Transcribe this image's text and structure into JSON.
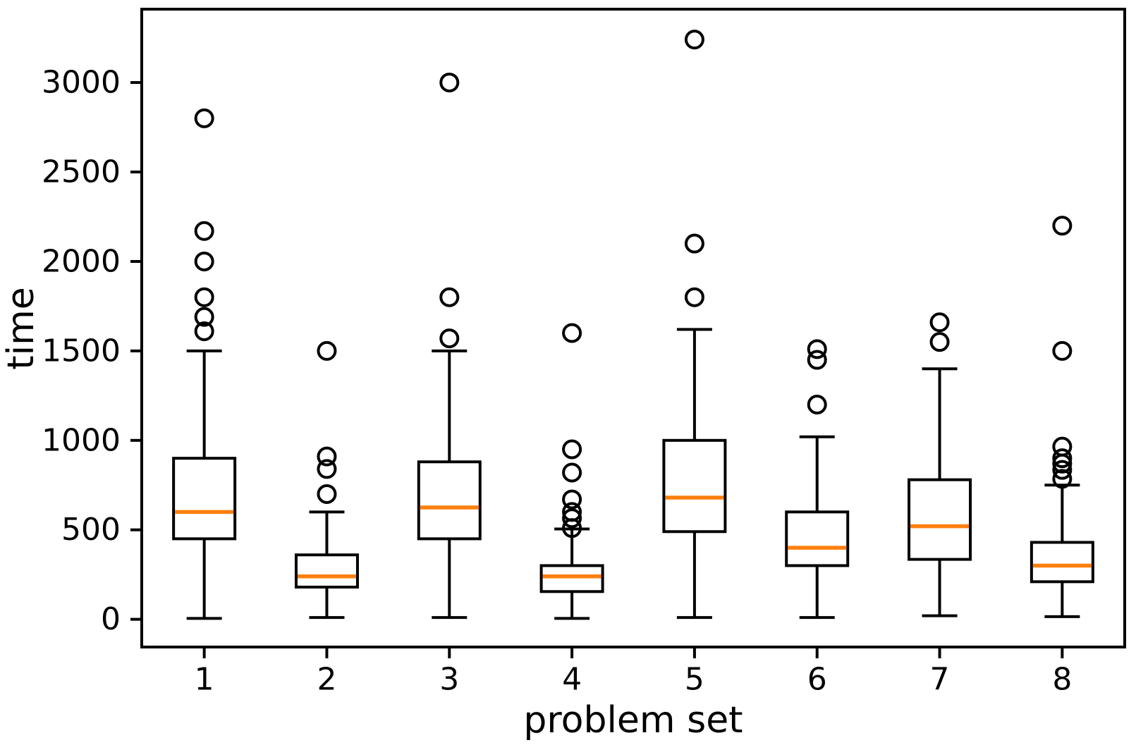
{
  "figure": {
    "background": "#ffffff",
    "axis_color": "#000000",
    "median_color": "#ff7f0e",
    "box_fill": "#ffffff"
  },
  "chart_data": {
    "type": "box",
    "title": "",
    "xlabel": "problem set",
    "ylabel": "time",
    "categories": [
      "1",
      "2",
      "3",
      "4",
      "5",
      "6",
      "7",
      "8"
    ],
    "yticks": [
      0,
      500,
      1000,
      1500,
      2000,
      2500,
      3000
    ],
    "ylim": [
      -155,
      3410
    ],
    "xlim": [
      0.49,
      8.51
    ],
    "grid": false,
    "legend": false,
    "series": [
      {
        "label": "1",
        "whisker_low": 5,
        "q1": 450,
        "median": 600,
        "q3": 900,
        "whisker_high": 1500,
        "outliers": [
          1610,
          1690,
          1800,
          2000,
          2170,
          2800
        ]
      },
      {
        "label": "2",
        "whisker_low": 10,
        "q1": 180,
        "median": 240,
        "q3": 360,
        "whisker_high": 600,
        "outliers": [
          700,
          840,
          910,
          1500
        ]
      },
      {
        "label": "3",
        "whisker_low": 10,
        "q1": 450,
        "median": 625,
        "q3": 880,
        "whisker_high": 1500,
        "outliers": [
          1570,
          1800,
          3000
        ]
      },
      {
        "label": "4",
        "whisker_low": 5,
        "q1": 155,
        "median": 240,
        "q3": 300,
        "whisker_high": 505,
        "outliers": [
          510,
          565,
          600,
          670,
          820,
          950,
          1600
        ]
      },
      {
        "label": "5",
        "whisker_low": 10,
        "q1": 490,
        "median": 680,
        "q3": 1000,
        "whisker_high": 1620,
        "outliers": [
          1800,
          2100,
          3240
        ]
      },
      {
        "label": "6",
        "whisker_low": 10,
        "q1": 300,
        "median": 400,
        "q3": 600,
        "whisker_high": 1020,
        "outliers": [
          1200,
          1450,
          1510
        ]
      },
      {
        "label": "7",
        "whisker_low": 20,
        "q1": 335,
        "median": 520,
        "q3": 780,
        "whisker_high": 1400,
        "outliers": [
          1550,
          1660
        ]
      },
      {
        "label": "8",
        "whisker_low": 15,
        "q1": 210,
        "median": 300,
        "q3": 430,
        "whisker_high": 750,
        "outliers": [
          785,
          835,
          870,
          900,
          965,
          1500,
          2200
        ]
      }
    ]
  }
}
